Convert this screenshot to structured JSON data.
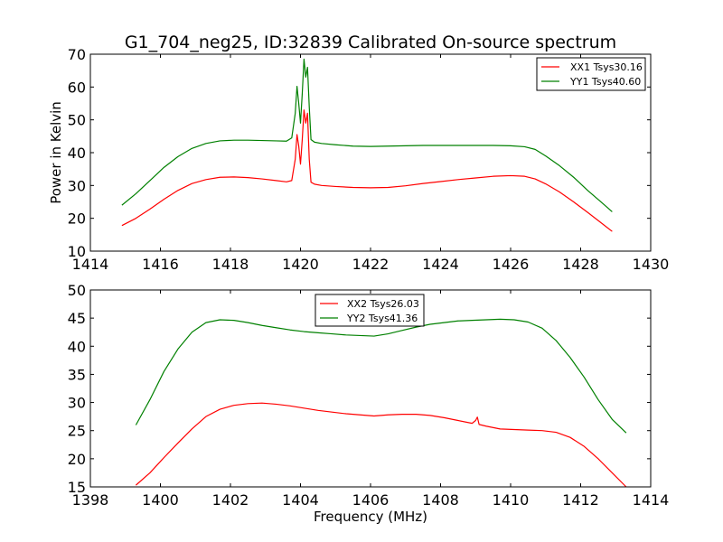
{
  "colors": {
    "red": "#ff0000",
    "green": "#008000",
    "axes": "#000000",
    "background": "#ffffff"
  },
  "chart_data": [
    {
      "type": "line",
      "title": "G1_704_neg25, ID:32839 Calibrated On-source spectrum",
      "xlabel": "",
      "ylabel": "Power in Kelvin",
      "xlim": [
        1414,
        1430
      ],
      "ylim": [
        10,
        70
      ],
      "xticks": [
        "1414",
        "1416",
        "1418",
        "1420",
        "1422",
        "1424",
        "1426",
        "1428",
        "1430"
      ],
      "yticks": [
        "10",
        "20",
        "30",
        "40",
        "50",
        "60",
        "70"
      ],
      "legend_position": "top-right",
      "grid": false,
      "series": [
        {
          "name": "XX1 Tsys30.16",
          "color": "#ff0000",
          "x": [
            1414.9,
            1415.3,
            1415.7,
            1416.1,
            1416.5,
            1416.9,
            1417.3,
            1417.7,
            1418.1,
            1418.5,
            1418.9,
            1419.3,
            1419.6,
            1419.75,
            1419.85,
            1419.9,
            1419.95,
            1420.0,
            1420.05,
            1420.1,
            1420.15,
            1420.2,
            1420.25,
            1420.3,
            1420.4,
            1420.6,
            1421.0,
            1421.5,
            1422.0,
            1422.5,
            1423.0,
            1423.5,
            1424.0,
            1424.5,
            1425.0,
            1425.5,
            1426.0,
            1426.4,
            1426.7,
            1427.0,
            1427.4,
            1427.8,
            1428.2,
            1428.6,
            1428.9
          ],
          "y": [
            17.8,
            20.0,
            22.8,
            25.8,
            28.5,
            30.6,
            31.8,
            32.5,
            32.6,
            32.4,
            32.0,
            31.5,
            31.1,
            31.5,
            38.0,
            45.5,
            42.0,
            36.5,
            44.0,
            53.0,
            49.0,
            52.0,
            38.0,
            31.0,
            30.4,
            30.0,
            29.7,
            29.4,
            29.3,
            29.4,
            29.9,
            30.6,
            31.2,
            31.8,
            32.3,
            32.8,
            33.0,
            32.8,
            32.0,
            30.5,
            28.0,
            25.0,
            21.8,
            18.5,
            16.0
          ]
        },
        {
          "name": "YY1 Tsys40.60",
          "color": "#008000",
          "x": [
            1414.9,
            1415.3,
            1415.7,
            1416.1,
            1416.5,
            1416.9,
            1417.3,
            1417.7,
            1418.1,
            1418.5,
            1418.9,
            1419.3,
            1419.6,
            1419.75,
            1419.85,
            1419.9,
            1419.95,
            1420.0,
            1420.05,
            1420.1,
            1420.15,
            1420.2,
            1420.25,
            1420.3,
            1420.4,
            1420.6,
            1421.0,
            1421.5,
            1422.0,
            1422.5,
            1423.0,
            1423.5,
            1424.0,
            1424.5,
            1425.0,
            1425.5,
            1426.0,
            1426.4,
            1426.7,
            1427.0,
            1427.4,
            1427.8,
            1428.2,
            1428.6,
            1428.9
          ],
          "y": [
            24.0,
            27.5,
            31.5,
            35.5,
            38.8,
            41.3,
            42.8,
            43.6,
            43.8,
            43.8,
            43.7,
            43.6,
            43.5,
            44.5,
            52.0,
            60.2,
            55.0,
            49.0,
            58.0,
            68.5,
            63.0,
            66.0,
            54.0,
            44.0,
            43.2,
            42.8,
            42.4,
            42.0,
            41.9,
            42.0,
            42.1,
            42.2,
            42.2,
            42.2,
            42.2,
            42.2,
            42.1,
            41.8,
            41.0,
            39.0,
            36.0,
            32.5,
            28.5,
            24.8,
            22.0
          ]
        }
      ]
    },
    {
      "type": "line",
      "title": "",
      "xlabel": "Frequency (MHz)",
      "ylabel": "",
      "xlim": [
        1398,
        1414
      ],
      "ylim": [
        15,
        50
      ],
      "xticks": [
        "1398",
        "1400",
        "1402",
        "1404",
        "1406",
        "1408",
        "1410",
        "1412",
        "1414"
      ],
      "yticks": [
        "15",
        "20",
        "25",
        "30",
        "35",
        "40",
        "45",
        "50"
      ],
      "legend_position": "upper-center",
      "grid": false,
      "series": [
        {
          "name": "XX2 Tsys26.03",
          "color": "#ff0000",
          "x": [
            1399.3,
            1399.7,
            1400.1,
            1400.5,
            1400.9,
            1401.3,
            1401.7,
            1402.1,
            1402.5,
            1402.9,
            1403.3,
            1403.7,
            1404.1,
            1404.5,
            1404.9,
            1405.3,
            1405.7,
            1406.1,
            1406.5,
            1406.9,
            1407.3,
            1407.7,
            1408.1,
            1408.5,
            1408.9,
            1409.0,
            1409.05,
            1409.1,
            1409.3,
            1409.7,
            1410.1,
            1410.5,
            1410.9,
            1411.3,
            1411.7,
            1412.1,
            1412.5,
            1412.9,
            1413.3
          ],
          "y": [
            15.3,
            17.5,
            20.2,
            22.8,
            25.3,
            27.5,
            28.8,
            29.5,
            29.8,
            29.9,
            29.7,
            29.4,
            29.0,
            28.6,
            28.3,
            28.0,
            27.8,
            27.6,
            27.8,
            27.9,
            27.9,
            27.7,
            27.3,
            26.8,
            26.3,
            26.8,
            27.4,
            26.1,
            25.8,
            25.3,
            25.2,
            25.1,
            25.0,
            24.7,
            23.8,
            22.2,
            20.0,
            17.5,
            15.0
          ]
        },
        {
          "name": "YY2 Tsys41.36",
          "color": "#008000",
          "x": [
            1399.3,
            1399.7,
            1400.1,
            1400.5,
            1400.9,
            1401.3,
            1401.7,
            1402.1,
            1402.5,
            1402.9,
            1403.3,
            1403.7,
            1404.1,
            1404.5,
            1404.9,
            1405.3,
            1405.7,
            1406.1,
            1406.5,
            1406.9,
            1407.3,
            1407.7,
            1408.1,
            1408.5,
            1408.9,
            1409.3,
            1409.7,
            1410.1,
            1410.5,
            1410.9,
            1411.3,
            1411.7,
            1412.1,
            1412.5,
            1412.9,
            1413.3
          ],
          "y": [
            26.0,
            30.5,
            35.5,
            39.5,
            42.5,
            44.2,
            44.7,
            44.6,
            44.2,
            43.7,
            43.3,
            42.9,
            42.6,
            42.4,
            42.2,
            42.0,
            41.9,
            41.8,
            42.2,
            42.8,
            43.4,
            43.9,
            44.2,
            44.5,
            44.6,
            44.7,
            44.8,
            44.7,
            44.3,
            43.2,
            41.0,
            38.0,
            34.5,
            30.5,
            27.0,
            24.6
          ]
        }
      ]
    }
  ]
}
